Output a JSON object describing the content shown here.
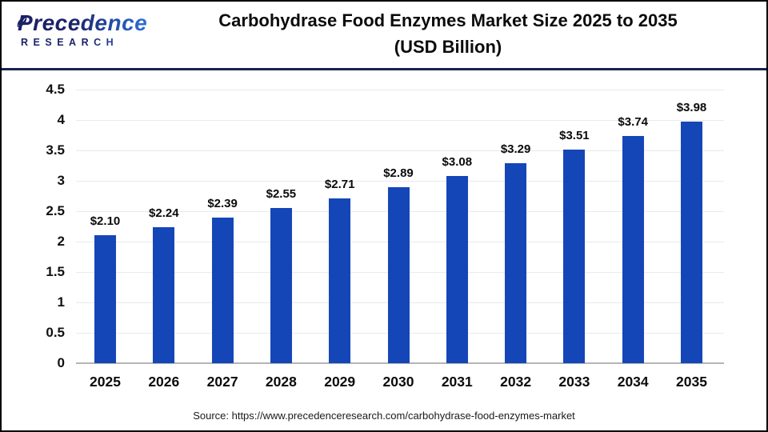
{
  "header": {
    "logo": {
      "line1": "Precedence",
      "line2": "RESEARCH"
    },
    "title_line1": "Carbohydrase Food Enzymes Market Size 2025 to 2035",
    "title_line2": "(USD Billion)"
  },
  "chart_data": {
    "type": "bar",
    "title": "Carbohydrase Food Enzymes Market Size 2025 to 2035 (USD Billion)",
    "categories": [
      "2025",
      "2026",
      "2027",
      "2028",
      "2029",
      "2030",
      "2031",
      "2032",
      "2033",
      "2034",
      "2035"
    ],
    "values": [
      2.1,
      2.24,
      2.39,
      2.55,
      2.71,
      2.89,
      3.08,
      3.29,
      3.51,
      3.74,
      3.98
    ],
    "value_labels": [
      "$2.10",
      "$2.24",
      "$2.39",
      "$2.55",
      "$2.71",
      "$2.89",
      "$3.08",
      "$3.29",
      "$3.51",
      "$3.74",
      "$3.98"
    ],
    "xlabel": "",
    "ylabel": "",
    "ylim": [
      0,
      4.5
    ],
    "yticks": [
      0,
      0.5,
      1,
      1.5,
      2,
      2.5,
      3,
      3.5,
      4,
      4.5
    ],
    "ytick_labels": [
      "0",
      "0.5",
      "1",
      "1.5",
      "2",
      "2.5",
      "3",
      "3.5",
      "4",
      "4.5"
    ],
    "grid": true,
    "legend": "none",
    "bar_color": "#1546b8"
  },
  "footer": {
    "source": "Source: https://www.precedenceresearch.com/carbohydrase-food-enzymes-market"
  },
  "colors": {
    "bar": "#1546b8",
    "separator": "#1b2150",
    "frame_border": "#000000",
    "gridline": "#e9e9e9",
    "baseline": "#b5b5b5",
    "text": "#111111",
    "logo_navy": "#1b2167",
    "logo_blue": "#2f6fd8"
  }
}
